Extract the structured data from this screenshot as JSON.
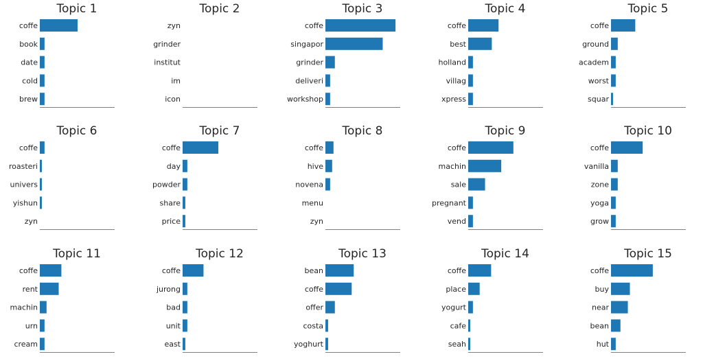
{
  "colors": {
    "bar": "#1f77b4",
    "axis": "#7f7f7f",
    "text": "#262626"
  },
  "chart_data": [
    {
      "type": "bar",
      "orientation": "horizontal",
      "title": "Topic 1",
      "categories": [
        "coffe",
        "book",
        "date",
        "cold",
        "brew"
      ],
      "values": [
        0.056,
        0.007,
        0.007,
        0.007,
        0.007
      ],
      "xlim": [
        0,
        0.11
      ],
      "grid": false
    },
    {
      "type": "bar",
      "orientation": "horizontal",
      "title": "Topic 2",
      "categories": [
        "zyn",
        "grinder",
        "institut",
        "im",
        "icon"
      ],
      "values": [
        0,
        0,
        0,
        0,
        0
      ],
      "xlim": [
        0,
        0.11
      ],
      "grid": false
    },
    {
      "type": "bar",
      "orientation": "horizontal",
      "title": "Topic 3",
      "categories": [
        "coffe",
        "singapor",
        "grinder",
        "deliveri",
        "workshop"
      ],
      "values": [
        0.104,
        0.085,
        0.014,
        0.007,
        0.007
      ],
      "xlim": [
        0,
        0.11
      ],
      "grid": false
    },
    {
      "type": "bar",
      "orientation": "horizontal",
      "title": "Topic 4",
      "categories": [
        "coffe",
        "best",
        "holland",
        "villag",
        "xpress"
      ],
      "values": [
        0.045,
        0.035,
        0.007,
        0.007,
        0.007
      ],
      "xlim": [
        0,
        0.11
      ],
      "grid": false
    },
    {
      "type": "bar",
      "orientation": "horizontal",
      "title": "Topic 5",
      "categories": [
        "coffe",
        "ground",
        "academ",
        "worst",
        "squar"
      ],
      "values": [
        0.036,
        0.01,
        0.007,
        0.007,
        0.003
      ],
      "xlim": [
        0,
        0.11
      ],
      "grid": false
    },
    {
      "type": "bar",
      "orientation": "horizontal",
      "title": "Topic 6",
      "categories": [
        "coffe",
        "roasteri",
        "univers",
        "yishun",
        "zyn"
      ],
      "values": [
        0.007,
        0.003,
        0.003,
        0.003,
        0
      ],
      "xlim": [
        0,
        0.11
      ],
      "grid": false
    },
    {
      "type": "bar",
      "orientation": "horizontal",
      "title": "Topic 7",
      "categories": [
        "coffe",
        "day",
        "powder",
        "share",
        "price"
      ],
      "values": [
        0.053,
        0.007,
        0.007,
        0.004,
        0.004
      ],
      "xlim": [
        0,
        0.11
      ],
      "grid": false
    },
    {
      "type": "bar",
      "orientation": "horizontal",
      "title": "Topic 8",
      "categories": [
        "coffe",
        "hive",
        "novena",
        "menu",
        "zyn"
      ],
      "values": [
        0.012,
        0.01,
        0.007,
        0,
        0
      ],
      "xlim": [
        0,
        0.11
      ],
      "grid": false
    },
    {
      "type": "bar",
      "orientation": "horizontal",
      "title": "Topic 9",
      "categories": [
        "coffe",
        "machin",
        "sale",
        "pregnant",
        "vend"
      ],
      "values": [
        0.067,
        0.049,
        0.025,
        0.007,
        0.007
      ],
      "xlim": [
        0,
        0.11
      ],
      "grid": false
    },
    {
      "type": "bar",
      "orientation": "horizontal",
      "title": "Topic 10",
      "categories": [
        "coffe",
        "vanilla",
        "zone",
        "yoga",
        "grow"
      ],
      "values": [
        0.047,
        0.01,
        0.01,
        0.007,
        0.007
      ],
      "xlim": [
        0,
        0.11
      ],
      "grid": false
    },
    {
      "type": "bar",
      "orientation": "horizontal",
      "title": "Topic 11",
      "categories": [
        "coffe",
        "rent",
        "machin",
        "urn",
        "cream"
      ],
      "values": [
        0.032,
        0.028,
        0.01,
        0.007,
        0.007
      ],
      "xlim": [
        0,
        0.11
      ],
      "grid": false
    },
    {
      "type": "bar",
      "orientation": "horizontal",
      "title": "Topic 12",
      "categories": [
        "coffe",
        "jurong",
        "bad",
        "unit",
        "east"
      ],
      "values": [
        0.031,
        0.007,
        0.007,
        0.007,
        0.004
      ],
      "xlim": [
        0,
        0.11
      ],
      "grid": false
    },
    {
      "type": "bar",
      "orientation": "horizontal",
      "title": "Topic 13",
      "categories": [
        "bean",
        "coffe",
        "offer",
        "costa",
        "yoghurt"
      ],
      "values": [
        0.042,
        0.039,
        0.014,
        0.004,
        0.004
      ],
      "xlim": [
        0,
        0.11
      ],
      "grid": false
    },
    {
      "type": "bar",
      "orientation": "horizontal",
      "title": "Topic 14",
      "categories": [
        "coffe",
        "place",
        "yogurt",
        "cafe",
        "seah"
      ],
      "values": [
        0.034,
        0.017,
        0.007,
        0.003,
        0.003
      ],
      "xlim": [
        0,
        0.11
      ],
      "grid": false
    },
    {
      "type": "bar",
      "orientation": "horizontal",
      "title": "Topic 15",
      "categories": [
        "coffe",
        "buy",
        "near",
        "bean",
        "hut"
      ],
      "values": [
        0.062,
        0.028,
        0.025,
        0.014,
        0.007
      ],
      "xlim": [
        0,
        0.11
      ],
      "grid": false
    }
  ]
}
